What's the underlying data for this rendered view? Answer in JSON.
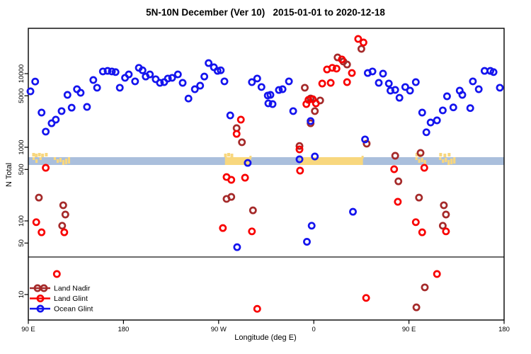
{
  "title": "5N-10N December (Ver 10)   2015-01-01 to 2020-12-18",
  "axes": {
    "x_label": "Longitude (deg E)",
    "y_label": "N Total",
    "x_ticks": [
      {
        "value": 90,
        "label": "90 E"
      },
      {
        "value": 180,
        "label": "180"
      },
      {
        "value": 270,
        "label": "90 W"
      },
      {
        "value": 360,
        "label": "0"
      },
      {
        "value": 450,
        "label": "90 E"
      },
      {
        "value": 540,
        "label": "180"
      }
    ],
    "y_ticks": [
      {
        "value": 10,
        "label": "10"
      },
      {
        "value": 50,
        "label": "50"
      },
      {
        "value": 100,
        "label": "100"
      },
      {
        "value": 500,
        "label": "500"
      },
      {
        "value": 1000,
        "label": "1000"
      },
      {
        "value": 5000,
        "label": "5000"
      },
      {
        "value": 10000,
        "label": "10000"
      }
    ]
  },
  "legend": {
    "items": [
      {
        "label": "Land Nadir",
        "color": "#A52A2A",
        "marker": "double-circle"
      },
      {
        "label": "Land Glint",
        "color": "#F80000",
        "marker": "circle"
      },
      {
        "label": "Ocean Glint",
        "color": "#1414EE",
        "marker": "circle"
      }
    ]
  },
  "chart_data": {
    "type": "scatter",
    "title": "5N-10N December (Ver 10)   2015-01-01 to 2020-12-18",
    "xlabel": "Longitude (deg E)",
    "ylabel": "N Total",
    "y_scale": "log",
    "x_axis_note": "axis spans 90E eastward wrapping through 180, 90W, 0, 90E to 180 (values 90-540 deg along axis)",
    "xlim_axis_deg": [
      90,
      540
    ],
    "ylim": [
      4.5,
      41000
    ],
    "grid": false,
    "legend_position": "bottom-left",
    "series": [
      {
        "name": "Land Nadir",
        "color": "#A52A2A",
        "points": [
          [
            100,
            207
          ],
          [
            122,
            86
          ],
          [
            123,
            163
          ],
          [
            125,
            122
          ],
          [
            277.5,
            199
          ],
          [
            282,
            212
          ],
          [
            287,
            1820
          ],
          [
            292,
            1170
          ],
          [
            302.5,
            139
          ],
          [
            346.5,
            1040
          ],
          [
            351.5,
            6430
          ],
          [
            357,
            4600
          ],
          [
            357,
            2120
          ],
          [
            361,
            3100
          ],
          [
            366,
            4320
          ],
          [
            382.5,
            16600
          ],
          [
            388,
            14600
          ],
          [
            391.5,
            13300
          ],
          [
            405,
            21700
          ],
          [
            410,
            1120
          ],
          [
            437,
            767
          ],
          [
            440,
            345
          ],
          [
            457,
            6.7
          ],
          [
            459.5,
            207
          ],
          [
            461,
            838
          ],
          [
            465,
            12.5
          ],
          [
            482,
            86
          ],
          [
            483,
            163
          ],
          [
            485,
            122
          ]
        ]
      },
      {
        "name": "Land Glint",
        "color": "#F80000",
        "points": [
          [
            97.5,
            96
          ],
          [
            102.5,
            70
          ],
          [
            106.5,
            526
          ],
          [
            117,
            19
          ],
          [
            124,
            70
          ],
          [
            274,
            80
          ],
          [
            277.5,
            394
          ],
          [
            282,
            361
          ],
          [
            287,
            1520
          ],
          [
            291,
            2370
          ],
          [
            295,
            386
          ],
          [
            301.5,
            72
          ],
          [
            306.5,
            6.4
          ],
          [
            346.5,
            936
          ],
          [
            347,
            482
          ],
          [
            353,
            3860
          ],
          [
            355,
            4410
          ],
          [
            359,
            4500
          ],
          [
            362,
            3950
          ],
          [
            368,
            7330
          ],
          [
            372.5,
            11400
          ],
          [
            376,
            7500
          ],
          [
            377.5,
            12000
          ],
          [
            381.5,
            11700
          ],
          [
            386.5,
            15600
          ],
          [
            391.5,
            7670
          ],
          [
            396,
            10200
          ],
          [
            402,
            29600
          ],
          [
            407,
            26500
          ],
          [
            409.5,
            9
          ],
          [
            436,
            503
          ],
          [
            439.5,
            182
          ],
          [
            456.5,
            96
          ],
          [
            462.5,
            70
          ],
          [
            464.5,
            526
          ],
          [
            476.5,
            19
          ],
          [
            485,
            72
          ]
        ]
      },
      {
        "name": "Ocean Glint",
        "color": "#1414EE",
        "points": [
          [
            92,
            5750
          ],
          [
            96.5,
            7800
          ],
          [
            102.5,
            2960
          ],
          [
            106.5,
            1630
          ],
          [
            112,
            2120
          ],
          [
            116,
            2370
          ],
          [
            121.5,
            3100
          ],
          [
            127,
            5150
          ],
          [
            131,
            3450
          ],
          [
            136,
            6140
          ],
          [
            139.5,
            5500
          ],
          [
            145.5,
            3530
          ],
          [
            151.5,
            8190
          ],
          [
            155,
            6430
          ],
          [
            160.5,
            10700
          ],
          [
            165,
            10900
          ],
          [
            169,
            10700
          ],
          [
            172.5,
            10500
          ],
          [
            176.5,
            6430
          ],
          [
            181.5,
            8770
          ],
          [
            185,
            9770
          ],
          [
            191,
            7850
          ],
          [
            194.5,
            12000
          ],
          [
            198,
            11100
          ],
          [
            201,
            9140
          ],
          [
            205,
            9770
          ],
          [
            210.5,
            8390
          ],
          [
            214.5,
            7500
          ],
          [
            218.5,
            7670
          ],
          [
            222,
            8580
          ],
          [
            226,
            8770
          ],
          [
            231.5,
            9770
          ],
          [
            236,
            7500
          ],
          [
            241.5,
            4590
          ],
          [
            247.5,
            6140
          ],
          [
            252.5,
            6870
          ],
          [
            256.5,
            9140
          ],
          [
            260.5,
            13900
          ],
          [
            265.5,
            12200
          ],
          [
            269,
            10900
          ],
          [
            272,
            11100
          ],
          [
            275.5,
            7850
          ],
          [
            281,
            2710
          ],
          [
            287.5,
            44
          ],
          [
            297.5,
            613
          ],
          [
            301.5,
            7670
          ],
          [
            306.5,
            8580
          ],
          [
            310.5,
            6580
          ],
          [
            316.5,
            5040
          ],
          [
            317,
            3950
          ],
          [
            319,
            5150
          ],
          [
            321,
            3860
          ],
          [
            327,
            6000
          ],
          [
            330.5,
            6140
          ],
          [
            336.5,
            7850
          ],
          [
            340.5,
            3100
          ],
          [
            346.5,
            687
          ],
          [
            353.5,
            52
          ],
          [
            357,
            2270
          ],
          [
            358,
            86
          ],
          [
            361,
            750
          ],
          [
            397,
            133
          ],
          [
            408.5,
            1280
          ],
          [
            411,
            10200
          ],
          [
            415.5,
            10700
          ],
          [
            421.5,
            7500
          ],
          [
            425.5,
            9990
          ],
          [
            431,
            7330
          ],
          [
            432.5,
            5880
          ],
          [
            437,
            6010
          ],
          [
            441,
            4700
          ],
          [
            446.5,
            6580
          ],
          [
            451,
            5880
          ],
          [
            456.5,
            7670
          ],
          [
            462.5,
            2960
          ],
          [
            466.5,
            1600
          ],
          [
            470.5,
            2170
          ],
          [
            476.5,
            2320
          ],
          [
            482,
            3170
          ],
          [
            486,
            4920
          ],
          [
            492,
            3480
          ],
          [
            498,
            5880
          ],
          [
            500.5,
            5150
          ],
          [
            508,
            3400
          ],
          [
            510.5,
            7850
          ],
          [
            516,
            6140
          ],
          [
            521.5,
            10900
          ],
          [
            527,
            10900
          ],
          [
            530,
            10500
          ],
          [
            536,
            6430
          ]
        ]
      }
    ],
    "surface_band": {
      "description": "horizontal strip near N=650 showing surface type along longitude",
      "ocean_color": "#AABFDC",
      "land_color": "#F8D77E",
      "land_segments": [
        {
          "lon0": 94,
          "lon1": 98.5,
          "style": "speckled"
        },
        {
          "lon0": 100.5,
          "lon1": 103,
          "style": "speckled"
        },
        {
          "lon0": 114,
          "lon1": 127.5,
          "style": "speckled"
        },
        {
          "lon0": 276,
          "lon1": 300.5,
          "style": "solid"
        },
        {
          "lon0": 347,
          "lon1": 406.5,
          "style": "solid"
        },
        {
          "lon0": 456,
          "lon1": 465,
          "style": "speckled"
        },
        {
          "lon0": 478.5,
          "lon1": 494,
          "style": "speckled"
        }
      ],
      "islands_above_band_lon": [
        95,
        97.5,
        100.5,
        103.5,
        107,
        276.5,
        279.5,
        282.5,
        457.5,
        460.5,
        480,
        484,
        488
      ]
    }
  }
}
